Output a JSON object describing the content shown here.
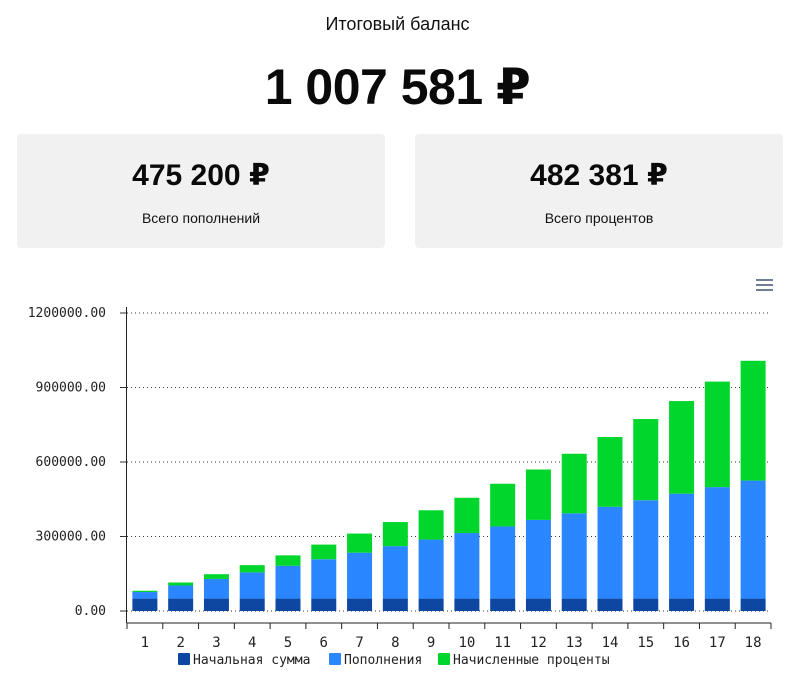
{
  "header": {
    "title": "Итоговый баланс",
    "total": "1 007 581 ₽"
  },
  "cards": [
    {
      "value": "475 200 ₽",
      "label": "Всего пополнений"
    },
    {
      "value": "482 381 ₽",
      "label": "Всего процентов"
    }
  ],
  "menu_icon": "hamburger-menu-icon",
  "colors": {
    "initial": "#0d47a1",
    "topups": "#2b87ff",
    "interest": "#00d62c"
  },
  "chart_data": {
    "type": "bar",
    "stacked": true,
    "categories": [
      "1",
      "2",
      "3",
      "4",
      "5",
      "6",
      "7",
      "8",
      "9",
      "10",
      "11",
      "12",
      "13",
      "14",
      "15",
      "16",
      "17",
      "18"
    ],
    "series": [
      {
        "name": "Начальная сумма",
        "values": [
          50000,
          50000,
          50000,
          50000,
          50000,
          50000,
          50000,
          50000,
          50000,
          50000,
          50000,
          50000,
          50000,
          50000,
          50000,
          50000,
          50000,
          50000
        ]
      },
      {
        "name": "Пополнения",
        "values": [
          26400,
          52800,
          79200,
          105600,
          132000,
          158400,
          184800,
          211200,
          237600,
          264000,
          290400,
          316800,
          343200,
          369600,
          396000,
          422400,
          448800,
          475200
        ]
      },
      {
        "name": "Начисленные проценты",
        "values": [
          5000,
          12000,
          19000,
          29000,
          42000,
          59000,
          77000,
          97000,
          118000,
          142000,
          172000,
          203000,
          240000,
          281000,
          327000,
          373000,
          425000,
          482381
        ]
      }
    ],
    "y_ticks": [
      "0.00",
      "300000.00",
      "600000.00",
      "900000.00",
      "1200000.00"
    ],
    "ylim": [
      0,
      1200000
    ],
    "grid": true,
    "legend_position": "bottom"
  }
}
